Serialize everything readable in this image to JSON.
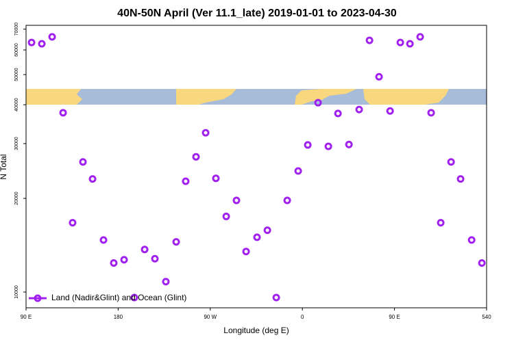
{
  "chart_data": {
    "type": "scatter",
    "title": "40N-50N April (Ver 11.1_late)   2019-01-01 to 2023-04-30",
    "x_label": "Longitude (deg E)",
    "y_label": "N Total",
    "xlim": [
      90,
      540
    ],
    "xticks": [
      {
        "value": 90,
        "label": "90 E"
      },
      180,
      {
        "value": 270,
        "label": "90 W"
      },
      {
        "value": 360,
        "label": "0"
      },
      {
        "value": 450,
        "label": "90 E"
      },
      540
    ],
    "ylim": [
      8900,
      72000
    ],
    "ylog": true,
    "yticks": [
      10000,
      20000,
      30000,
      40000,
      50000,
      60000,
      70000
    ],
    "legend": "bottomleft",
    "series": [
      {
        "name": "Land (Nadir&Glint) and Ocean (Glint)",
        "color": "#a020f0",
        "x": [
          95.4,
          105.4,
          115.5,
          126.2,
          135.5,
          145.6,
          155,
          165.7,
          175.7,
          185.8,
          195.8,
          205.9,
          215.9,
          226.6,
          236.7,
          246,
          256.1,
          265.5,
          275.5,
          285.6,
          295.6,
          305,
          315.7,
          325.8,
          334.5,
          345.2,
          355.9,
          365.3,
          375.3,
          385.4,
          394.8,
          405.5,
          415.5,
          425.6,
          434.9,
          445.7,
          455.7,
          465.1,
          475.1,
          485.8,
          495.2,
          505.3,
          514.6,
          525.4,
          535.4
        ],
        "values": [
          63400,
          62800,
          66100,
          37700,
          16700,
          26200,
          23100,
          14700,
          12400,
          12700,
          9600,
          13700,
          12800,
          10800,
          14500,
          22700,
          27200,
          32500,
          23200,
          17500,
          19700,
          13500,
          15000,
          15800,
          9600,
          19700,
          24500,
          29700,
          40600,
          29400,
          37500,
          29800,
          38600,
          64400,
          49200,
          38200,
          63400,
          62800,
          66100,
          37700,
          16700,
          26200,
          23100,
          14700,
          12400
        ]
      }
    ]
  }
}
